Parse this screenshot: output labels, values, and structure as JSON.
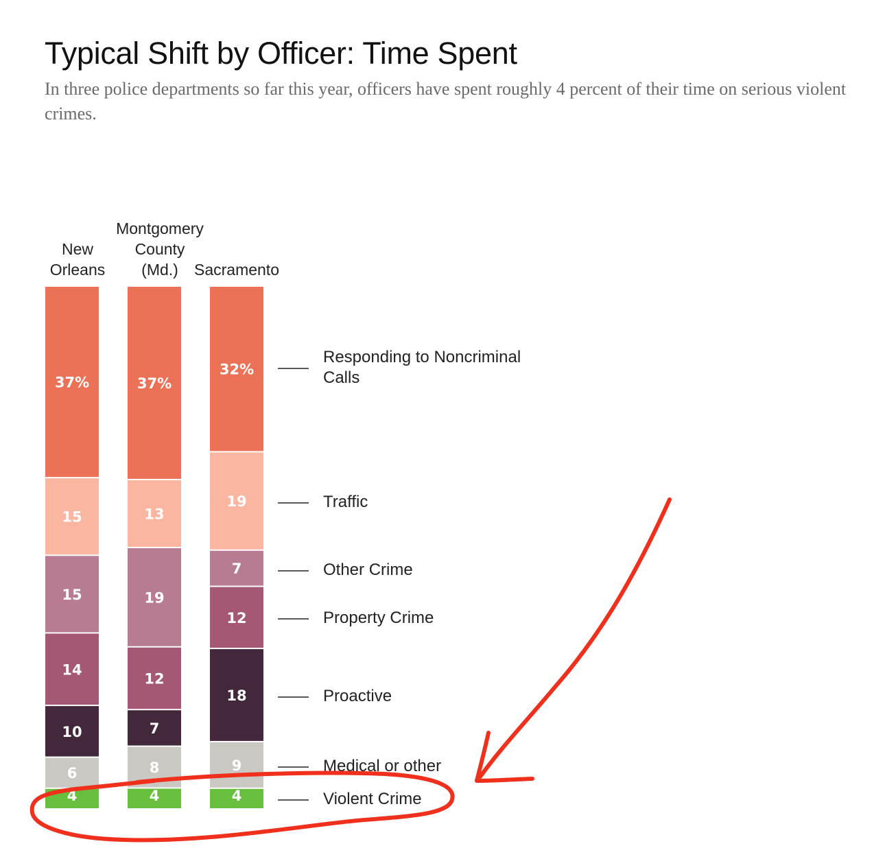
{
  "title": "Typical Shift by Officer: Time Spent",
  "subtitle": "In three police departments so far this year, officers have spent roughly 4 percent of their time on serious violent crimes.",
  "chart_data": {
    "type": "bar",
    "stacked": true,
    "unit": "percent",
    "categories": [
      "New Orleans",
      "Montgomery County (Md.)",
      "Sacramento"
    ],
    "category_label_lines": [
      [
        "New",
        "Orleans"
      ],
      [
        "Montgomery",
        "County",
        "(Md.)"
      ],
      [
        "Sacramento"
      ]
    ],
    "series": [
      {
        "name": "Responding to Noncriminal Calls",
        "values": [
          37,
          37,
          32
        ],
        "color": "#eb7257"
      },
      {
        "name": "Traffic",
        "values": [
          15,
          13,
          19
        ],
        "color": "#fbb6a2"
      },
      {
        "name": "Other Crime",
        "values": [
          15,
          19,
          7
        ],
        "color": "#b77c92"
      },
      {
        "name": "Property Crime",
        "values": [
          14,
          12,
          12
        ],
        "color": "#a55876"
      },
      {
        "name": "Proactive",
        "values": [
          10,
          7,
          18
        ],
        "color": "#42283a"
      },
      {
        "name": "Medical or other",
        "values": [
          6,
          8,
          9
        ],
        "color": "#c9c8c3"
      },
      {
        "name": "Violent Crime",
        "values": [
          4,
          4,
          4
        ],
        "color": "#68be3d"
      }
    ],
    "value_labels": [
      [
        "37%",
        "37%",
        "32%"
      ],
      [
        "15",
        "13",
        "19"
      ],
      [
        "15",
        "19",
        "7"
      ],
      [
        "14",
        "12",
        "12"
      ],
      [
        "10",
        "7",
        "18"
      ],
      [
        "6",
        "8",
        "9"
      ],
      [
        "4",
        "4",
        "4"
      ]
    ],
    "legend_label_lines": [
      [
        "Responding to Noncriminal",
        "Calls"
      ],
      [
        "Traffic"
      ],
      [
        "Other Crime"
      ],
      [
        "Property Crime"
      ],
      [
        "Proactive"
      ],
      [
        "Medical or other"
      ],
      [
        "Violent Crime"
      ]
    ],
    "legend_placement": "right of bars, aligned to the Sacramento column",
    "annotation": {
      "type": "hand-drawn highlight",
      "color": "#f0301c",
      "target": "Violent Crime"
    }
  }
}
